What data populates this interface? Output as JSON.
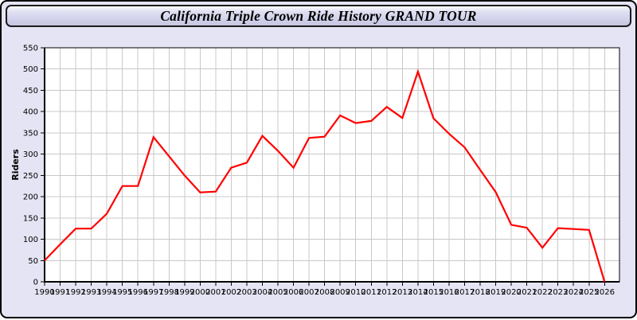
{
  "window": {
    "title": "California Triple Crown Ride History GRAND TOUR"
  },
  "chart_data": {
    "type": "line",
    "title": "California Triple Crown Ride History GRAND TOUR",
    "xlabel": "",
    "ylabel": "Riders",
    "x": [
      1990,
      1991,
      1992,
      1993,
      1994,
      1995,
      1996,
      1997,
      1998,
      1999,
      2000,
      2001,
      2002,
      2003,
      2004,
      2005,
      2006,
      2007,
      2008,
      2009,
      2010,
      2011,
      2012,
      2013,
      2014,
      2015,
      2016,
      2017,
      2018,
      2019,
      2020,
      2021,
      2022,
      2023,
      2024,
      2025,
      2026
    ],
    "series": [
      {
        "name": "Riders",
        "color": "#ff0000",
        "values": [
          50,
          88,
          125,
          125,
          160,
          225,
          225,
          340,
          295,
          250,
          210,
          212,
          268,
          280,
          343,
          308,
          268,
          338,
          341,
          391,
          373,
          378,
          411,
          385,
          494,
          384,
          348,
          316,
          263,
          211,
          134,
          127,
          80,
          126,
          124,
          122,
          0
        ]
      }
    ],
    "ylim": [
      0,
      550
    ],
    "yticks": [
      0,
      50,
      100,
      150,
      200,
      250,
      300,
      350,
      400,
      450,
      500,
      550
    ],
    "grid": true,
    "legend_position": "none"
  },
  "colors": {
    "page_background": "#e4e4f4",
    "plot_background": "#ffffff",
    "grid": "#c8c8c8",
    "axis": "#000000",
    "line": "#ff0000",
    "title_text": "#000000"
  }
}
